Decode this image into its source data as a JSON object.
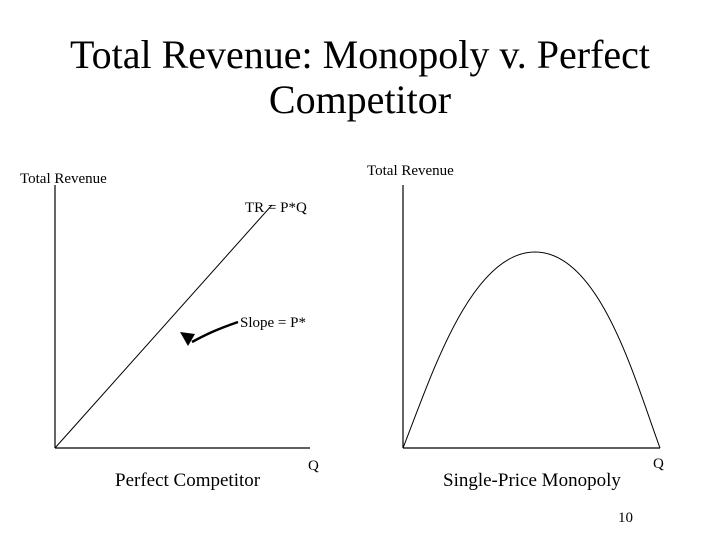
{
  "title_lines": [
    "Total Revenue: Monopoly v. Perfect",
    "Competitor"
  ],
  "left_panel": {
    "y_axis_label": "Total Revenue",
    "line_label": "TR = P*Q",
    "slope_label": "Slope = P*",
    "x_axis_label": "Q",
    "caption": "Perfect Competitor"
  },
  "right_panel": {
    "y_axis_label": "Total Revenue",
    "x_axis_label": "Q",
    "caption": "Single-Price Monopoly"
  },
  "page_number": "10"
}
